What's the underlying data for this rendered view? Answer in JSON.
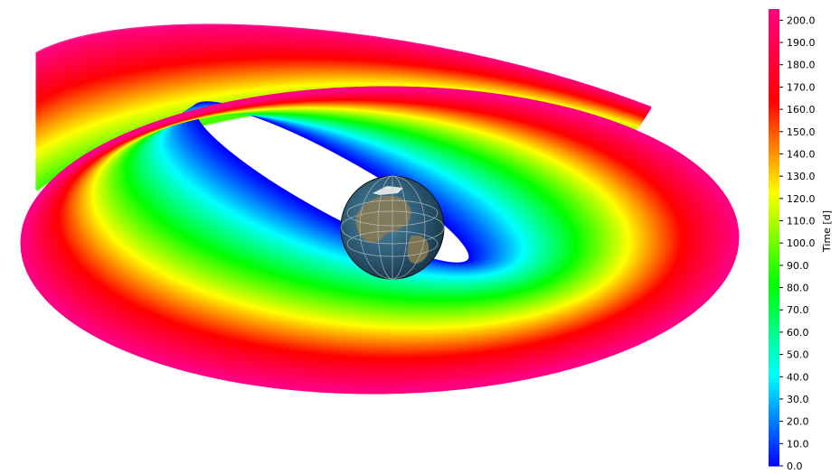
{
  "chart_data": {
    "type": "heatmap",
    "title": "",
    "colorbar": {
      "label": "Time [d]",
      "min": 0.0,
      "max": 205.0,
      "ticks": [
        "0.0",
        "10.0",
        "20.0",
        "30.0",
        "40.0",
        "50.0",
        "60.0",
        "70.0",
        "80.0",
        "90.0",
        "100.0",
        "110.0",
        "120.0",
        "130.0",
        "140.0",
        "150.0",
        "160.0",
        "170.0",
        "180.0",
        "190.0",
        "200.0"
      ],
      "colors": [
        "#0000ff",
        "#00ffff",
        "#00ff00",
        "#ffff00",
        "#ff0000",
        "#ff0080"
      ]
    },
    "central_body": "earth-globe",
    "grid": false,
    "legend": "right"
  }
}
